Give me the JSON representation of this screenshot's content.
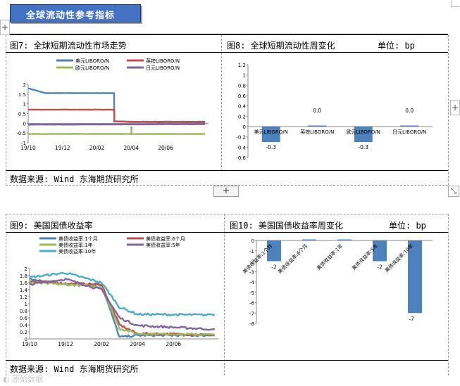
{
  "banner": {
    "title": "全球流动性参考指标"
  },
  "section1": {
    "fig7": {
      "title": "图7: 全球短期流动性市场走势",
      "legend": [
        "美元LIBORO/N",
        "英镑LIBORO/N",
        "欧元LIBORO/N",
        "日元LIBORO/N"
      ]
    },
    "fig8": {
      "title": "图8: 全球短期流动性周变化",
      "unit": "单位: bp"
    },
    "source": "数据来源: Wind  东海期货研究所"
  },
  "section2": {
    "fig9": {
      "title": "图9: 美国国债收益率",
      "legend": [
        "美债收益率:1个月",
        "美债收益率:6个月",
        "美债收益率:1年",
        "美债收益率:5年",
        "美债收益率:10年"
      ]
    },
    "fig10": {
      "title": "图10: 美国国债收益率周变化",
      "unit": "单位: bp"
    },
    "source": "数据来源: Wind  东海期货研究所"
  },
  "watermark": "原始数据",
  "colors": {
    "usd": "#4f81bd",
    "gbp": "#c0504d",
    "eur": "#9bbb59",
    "jpy": "#8064a2",
    "teal": "#4bacc6",
    "bar": "#4f81bd"
  },
  "chart_data": [
    {
      "type": "line",
      "title": "",
      "x_ticks": [
        "19/10",
        "19/12",
        "20/02",
        "20/04",
        "20/06"
      ],
      "ylim": [
        -1,
        2
      ],
      "y_ticks": [
        -1,
        -0.5,
        0,
        0.5,
        1,
        1.5,
        2
      ],
      "legend_position": "top",
      "series": [
        {
          "name": "美元LIBORO/N",
          "x": [
            "19/10",
            "19/11",
            "20/01",
            "20/03",
            "20/03",
            "20/04",
            "20/06",
            "20/08"
          ],
          "y": [
            1.8,
            1.55,
            1.55,
            1.55,
            0.1,
            0.08,
            0.08,
            0.08
          ]
        },
        {
          "name": "英镑LIBORO/N",
          "x": [
            "19/10",
            "20/03",
            "20/03",
            "20/04",
            "20/08"
          ],
          "y": [
            0.7,
            0.7,
            0.1,
            0.07,
            0.05
          ]
        },
        {
          "name": "欧元LIBORO/N",
          "x": [
            "19/10",
            "20/04",
            "20/04",
            "20/04",
            "20/08"
          ],
          "y": [
            -0.55,
            -0.55,
            -0.2,
            -0.55,
            -0.55
          ]
        },
        {
          "name": "日元LIBORO/N",
          "x": [
            "19/10",
            "20/08"
          ],
          "y": [
            -0.07,
            -0.05
          ]
        }
      ]
    },
    {
      "type": "bar",
      "title": "",
      "categories": [
        "美元LIBORO/N",
        "英镑LIBORO/N",
        "欧元LIBORO/N",
        "日元LIBORO/N"
      ],
      "values": [
        -0.3,
        0.0,
        -0.3,
        0.0
      ],
      "data_labels": [
        "-0.3",
        "0.0",
        "-0.3",
        "0.0"
      ],
      "ylim": [
        -0.6,
        1.2
      ],
      "y_ticks": [
        -0.6,
        -0.4,
        -0.2,
        0,
        0.2,
        0.4,
        0.6,
        0.8,
        1,
        1.2
      ]
    },
    {
      "type": "line",
      "title": "",
      "x_ticks": [
        "19/10",
        "19/12",
        "20/02",
        "20/04",
        "20/06"
      ],
      "ylim": [
        0,
        2
      ],
      "y_ticks": [
        0,
        0.2,
        0.4,
        0.6,
        0.8,
        1,
        1.2,
        1.4,
        1.6,
        1.8,
        2
      ],
      "legend_position": "top",
      "series": [
        {
          "name": "美债收益率:1个月",
          "x": [
            "19/10",
            "19/12",
            "20/02",
            "20/03",
            "20/04",
            "20/08"
          ],
          "y": [
            1.7,
            1.55,
            1.55,
            0.05,
            0.1,
            0.1
          ]
        },
        {
          "name": "美债收益率:6个月",
          "x": [
            "19/10",
            "19/12",
            "20/02",
            "20/03",
            "20/04",
            "20/08"
          ],
          "y": [
            1.65,
            1.58,
            1.55,
            0.4,
            0.15,
            0.12
          ]
        },
        {
          "name": "美债收益率:1年",
          "x": [
            "19/10",
            "19/12",
            "20/02",
            "20/03",
            "20/04",
            "20/08"
          ],
          "y": [
            1.6,
            1.55,
            1.48,
            0.3,
            0.15,
            0.12
          ]
        },
        {
          "name": "美债收益率:5年",
          "x": [
            "19/10",
            "19/12",
            "20/02",
            "20/03",
            "20/04",
            "20/08"
          ],
          "y": [
            1.55,
            1.7,
            1.4,
            0.6,
            0.38,
            0.28
          ]
        },
        {
          "name": "美债收益率:10年",
          "x": [
            "19/10",
            "19/12",
            "20/02",
            "20/03",
            "20/04",
            "20/08"
          ],
          "y": [
            1.75,
            1.88,
            1.6,
            0.9,
            0.7,
            0.68
          ]
        }
      ]
    },
    {
      "type": "bar",
      "title": "",
      "categories": [
        "美债收益率:1个月",
        "美债收益率:6个月",
        "美债收益率:1年",
        "美债收益率:5年",
        "美债收益率:10年"
      ],
      "values": [
        -2,
        0,
        0,
        -2,
        -7
      ],
      "data_labels": [
        "-2",
        "",
        "",
        "-2",
        "-7"
      ],
      "ylim": [
        -8,
        0
      ],
      "y_ticks": [
        -8,
        -7,
        -6,
        -5,
        -4,
        -3,
        -2,
        -1,
        0
      ]
    }
  ]
}
